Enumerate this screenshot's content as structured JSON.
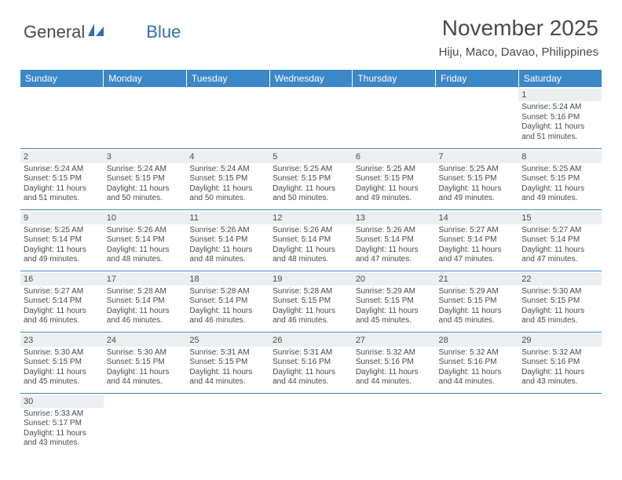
{
  "logo": {
    "text1": "General",
    "text2": "Blue"
  },
  "title": "November 2025",
  "location": "Hiju, Maco, Davao, Philippines",
  "colors": {
    "header_bg": "#3b87c8",
    "header_text": "#ffffff",
    "daynum_bg": "#eceff2",
    "text": "#4a4a4a",
    "border": "#3b87c8",
    "logo_blue": "#2f6fad"
  },
  "fonts": {
    "title_size": 28,
    "location_size": 15,
    "dayhdr_size": 12,
    "daynum_size": 11,
    "body_size": 10
  },
  "day_headers": [
    "Sunday",
    "Monday",
    "Tuesday",
    "Wednesday",
    "Thursday",
    "Friday",
    "Saturday"
  ],
  "weeks": [
    [
      null,
      null,
      null,
      null,
      null,
      null,
      {
        "n": "1",
        "sr": "5:24 AM",
        "ss": "5:16 PM",
        "dh": "11",
        "dm": "51"
      }
    ],
    [
      {
        "n": "2",
        "sr": "5:24 AM",
        "ss": "5:15 PM",
        "dh": "11",
        "dm": "51"
      },
      {
        "n": "3",
        "sr": "5:24 AM",
        "ss": "5:15 PM",
        "dh": "11",
        "dm": "50"
      },
      {
        "n": "4",
        "sr": "5:24 AM",
        "ss": "5:15 PM",
        "dh": "11",
        "dm": "50"
      },
      {
        "n": "5",
        "sr": "5:25 AM",
        "ss": "5:15 PM",
        "dh": "11",
        "dm": "50"
      },
      {
        "n": "6",
        "sr": "5:25 AM",
        "ss": "5:15 PM",
        "dh": "11",
        "dm": "49"
      },
      {
        "n": "7",
        "sr": "5:25 AM",
        "ss": "5:15 PM",
        "dh": "11",
        "dm": "49"
      },
      {
        "n": "8",
        "sr": "5:25 AM",
        "ss": "5:15 PM",
        "dh": "11",
        "dm": "49"
      }
    ],
    [
      {
        "n": "9",
        "sr": "5:25 AM",
        "ss": "5:14 PM",
        "dh": "11",
        "dm": "49"
      },
      {
        "n": "10",
        "sr": "5:26 AM",
        "ss": "5:14 PM",
        "dh": "11",
        "dm": "48"
      },
      {
        "n": "11",
        "sr": "5:26 AM",
        "ss": "5:14 PM",
        "dh": "11",
        "dm": "48"
      },
      {
        "n": "12",
        "sr": "5:26 AM",
        "ss": "5:14 PM",
        "dh": "11",
        "dm": "48"
      },
      {
        "n": "13",
        "sr": "5:26 AM",
        "ss": "5:14 PM",
        "dh": "11",
        "dm": "47"
      },
      {
        "n": "14",
        "sr": "5:27 AM",
        "ss": "5:14 PM",
        "dh": "11",
        "dm": "47"
      },
      {
        "n": "15",
        "sr": "5:27 AM",
        "ss": "5:14 PM",
        "dh": "11",
        "dm": "47"
      }
    ],
    [
      {
        "n": "16",
        "sr": "5:27 AM",
        "ss": "5:14 PM",
        "dh": "11",
        "dm": "46"
      },
      {
        "n": "17",
        "sr": "5:28 AM",
        "ss": "5:14 PM",
        "dh": "11",
        "dm": "46"
      },
      {
        "n": "18",
        "sr": "5:28 AM",
        "ss": "5:14 PM",
        "dh": "11",
        "dm": "46"
      },
      {
        "n": "19",
        "sr": "5:28 AM",
        "ss": "5:15 PM",
        "dh": "11",
        "dm": "46"
      },
      {
        "n": "20",
        "sr": "5:29 AM",
        "ss": "5:15 PM",
        "dh": "11",
        "dm": "45"
      },
      {
        "n": "21",
        "sr": "5:29 AM",
        "ss": "5:15 PM",
        "dh": "11",
        "dm": "45"
      },
      {
        "n": "22",
        "sr": "5:30 AM",
        "ss": "5:15 PM",
        "dh": "11",
        "dm": "45"
      }
    ],
    [
      {
        "n": "23",
        "sr": "5:30 AM",
        "ss": "5:15 PM",
        "dh": "11",
        "dm": "45"
      },
      {
        "n": "24",
        "sr": "5:30 AM",
        "ss": "5:15 PM",
        "dh": "11",
        "dm": "44"
      },
      {
        "n": "25",
        "sr": "5:31 AM",
        "ss": "5:15 PM",
        "dh": "11",
        "dm": "44"
      },
      {
        "n": "26",
        "sr": "5:31 AM",
        "ss": "5:16 PM",
        "dh": "11",
        "dm": "44"
      },
      {
        "n": "27",
        "sr": "5:32 AM",
        "ss": "5:16 PM",
        "dh": "11",
        "dm": "44"
      },
      {
        "n": "28",
        "sr": "5:32 AM",
        "ss": "5:16 PM",
        "dh": "11",
        "dm": "44"
      },
      {
        "n": "29",
        "sr": "5:32 AM",
        "ss": "5:16 PM",
        "dh": "11",
        "dm": "43"
      }
    ],
    [
      {
        "n": "30",
        "sr": "5:33 AM",
        "ss": "5:17 PM",
        "dh": "11",
        "dm": "43"
      },
      null,
      null,
      null,
      null,
      null,
      null
    ]
  ],
  "labels": {
    "sunrise": "Sunrise:",
    "sunset": "Sunset:",
    "daylight": "Daylight:",
    "hours": "hours",
    "and": "and",
    "minutes": "minutes."
  }
}
